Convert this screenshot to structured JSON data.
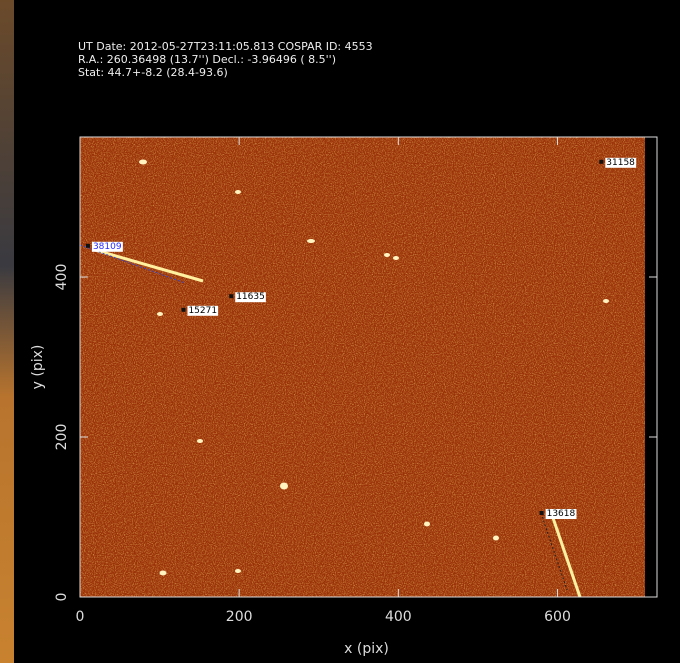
{
  "chart_data": {
    "type": "scatter",
    "annotations": [
      "UT Date: 2012-05-27T23:11:05.813   COSPAR ID: 4553",
      "R.A.:  260.36498 (13.7'') Decl.:    -3.96496 ( 8.5'')",
      "Stat:   44.7+-8.2 (28.4-93.6)"
    ],
    "xlabel": "x (pix)",
    "ylabel": "y (pix)",
    "xlim": [
      0,
      725
    ],
    "ylim": [
      0,
      575
    ],
    "xticks": [
      0,
      200,
      400,
      600
    ],
    "yticks": [
      0,
      200,
      400
    ],
    "x": [
      10,
      190,
      130,
      655,
      580
    ],
    "values": [
      439,
      376,
      359,
      544,
      105
    ],
    "point_labels": [
      "38109",
      "11635",
      "15271",
      "31158",
      "13618"
    ],
    "label_colors": [
      "#2a2aff",
      "#000000",
      "#000000",
      "#000000",
      "#000000"
    ],
    "marker_color": "#111111"
  }
}
